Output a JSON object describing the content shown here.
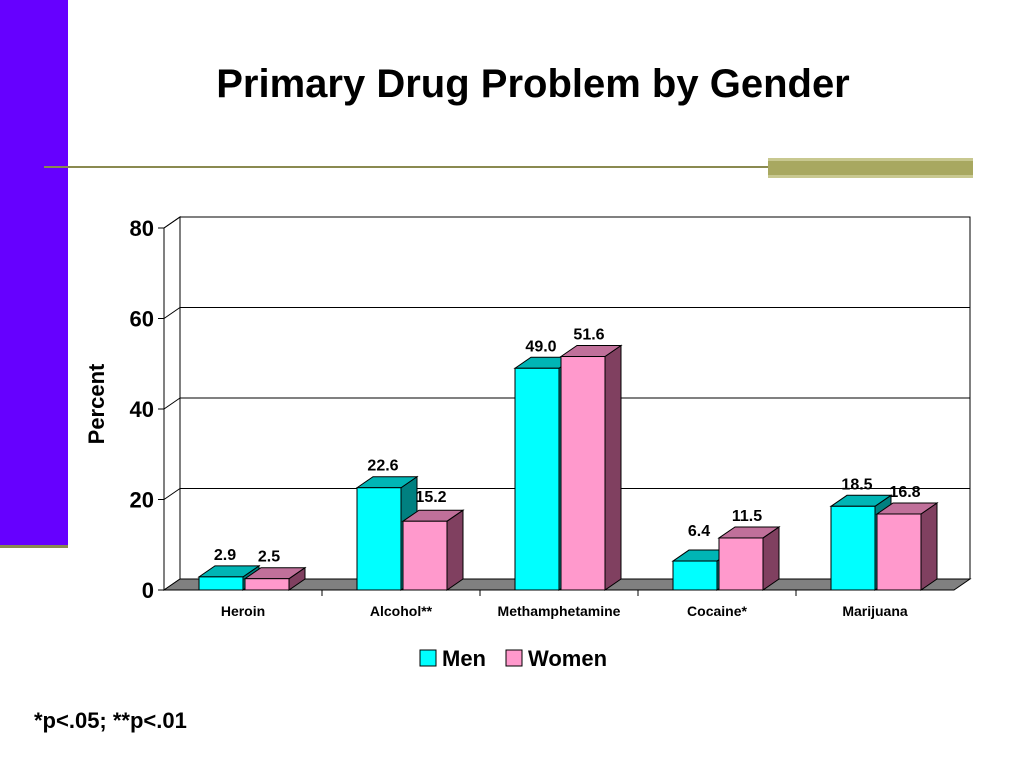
{
  "slide": {
    "title": "Primary Drug Problem by Gender",
    "footnote": "*p<.05; **p<.01"
  },
  "colors": {
    "side_bar": "#6600ff",
    "rule": "#8a8a50",
    "men": "#00ffff",
    "men_side": "#008080",
    "men_top": "#00b5b5",
    "women": "#ff99cc",
    "women_side": "#804060",
    "women_top": "#c0709a",
    "floor": "#808080"
  },
  "chart_data": {
    "type": "bar",
    "three_d": true,
    "title": "",
    "xlabel": "",
    "ylabel": "Percent",
    "ylim": [
      0,
      80
    ],
    "yticks": [
      "0",
      "20",
      "40",
      "60",
      "80"
    ],
    "grid": true,
    "legend_position": "bottom",
    "categories": [
      "Heroin",
      "Alcohol**",
      "Methamphetamine",
      "Cocaine*",
      "Marijuana"
    ],
    "series": [
      {
        "name": "Men",
        "values": [
          2.9,
          22.6,
          49.0,
          6.4,
          18.5
        ],
        "labels": [
          "2.9",
          "22.6",
          "49.0",
          "6.4",
          "18.5"
        ]
      },
      {
        "name": "Women",
        "values": [
          2.5,
          15.2,
          51.6,
          11.5,
          16.8
        ],
        "labels": [
          "2.5",
          "15.2",
          "51.6",
          "11.5",
          "16.8"
        ]
      }
    ]
  }
}
